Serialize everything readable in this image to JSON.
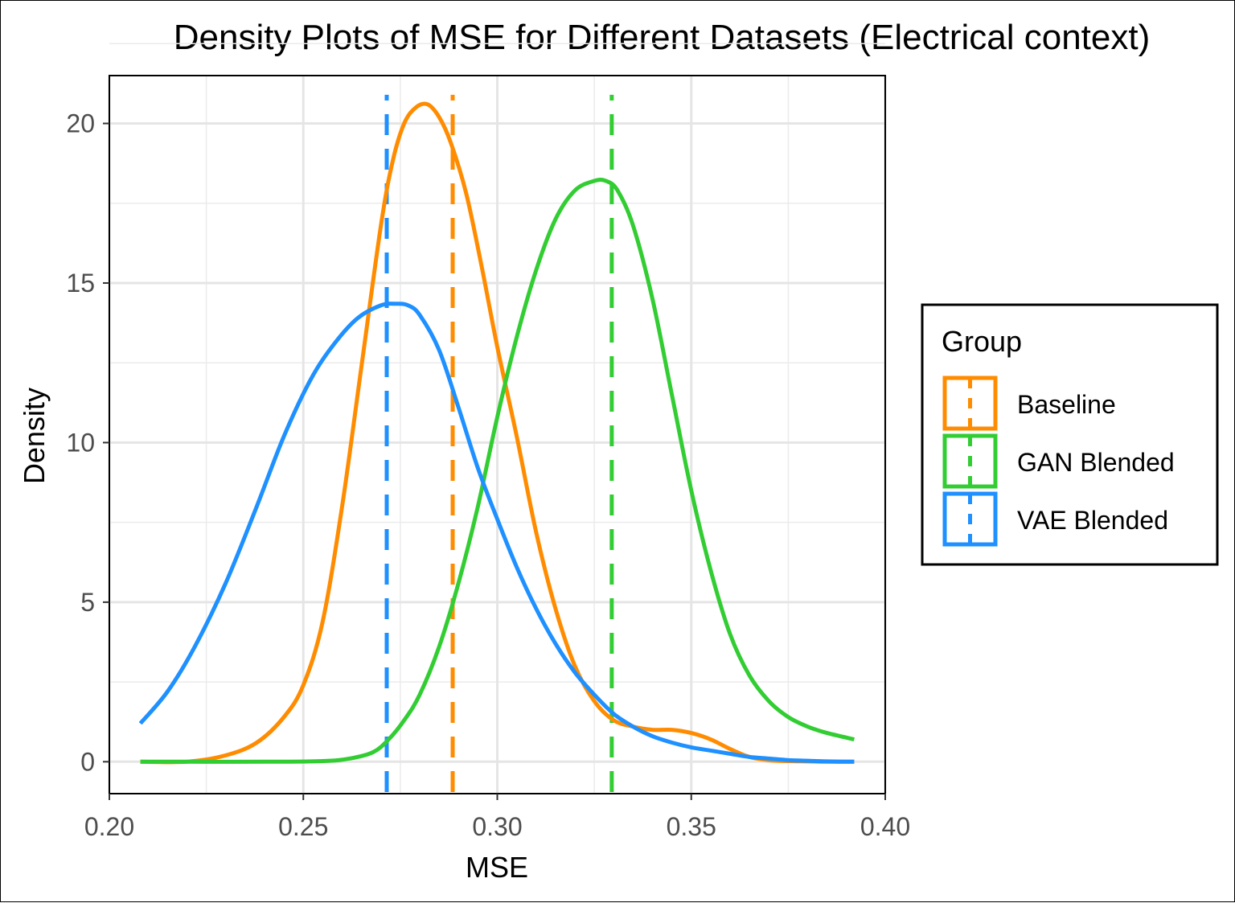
{
  "chart_data": {
    "type": "line",
    "title": "Density Plots of MSE for Different Datasets (Electrical context)",
    "xlabel": "MSE",
    "ylabel": "Density",
    "xlim": [
      0.2,
      0.4
    ],
    "ylim": [
      -1,
      21.5
    ],
    "xticks": [
      0.2,
      0.25,
      0.3,
      0.35,
      0.4
    ],
    "xtick_labels": [
      "0.20",
      "0.25",
      "0.30",
      "0.35",
      "0.40"
    ],
    "yticks": [
      0,
      5,
      10,
      15,
      20
    ],
    "ytick_labels": [
      "0",
      "5",
      "10",
      "15",
      "20"
    ],
    "grid": true,
    "legend": {
      "title": "Group",
      "placement": "right"
    },
    "series": [
      {
        "name": "Baseline",
        "color": "#ff8c00",
        "mean": 0.2885,
        "x": [
          0.208,
          0.22,
          0.23,
          0.238,
          0.245,
          0.25,
          0.255,
          0.26,
          0.265,
          0.27,
          0.273,
          0.276,
          0.279,
          0.282,
          0.285,
          0.288,
          0.292,
          0.296,
          0.3,
          0.305,
          0.31,
          0.315,
          0.32,
          0.325,
          0.33,
          0.335,
          0.34,
          0.345,
          0.35,
          0.355,
          0.36,
          0.365,
          0.37,
          0.375,
          0.38,
          0.385,
          0.392
        ],
        "y": [
          0.0,
          0.0,
          0.2,
          0.6,
          1.4,
          2.4,
          4.4,
          8.0,
          12.4,
          16.8,
          18.8,
          20.0,
          20.5,
          20.6,
          20.2,
          19.4,
          17.8,
          15.5,
          13.0,
          10.2,
          7.2,
          4.8,
          3.0,
          1.9,
          1.3,
          1.1,
          1.0,
          1.0,
          0.9,
          0.7,
          0.4,
          0.15,
          0.05,
          0.02,
          0.01,
          0.0,
          0.0
        ]
      },
      {
        "name": "GAN Blended",
        "color": "#32cd32",
        "mean": 0.3295,
        "x": [
          0.208,
          0.22,
          0.24,
          0.255,
          0.262,
          0.268,
          0.272,
          0.276,
          0.28,
          0.285,
          0.29,
          0.295,
          0.3,
          0.305,
          0.31,
          0.315,
          0.32,
          0.325,
          0.328,
          0.331,
          0.335,
          0.34,
          0.345,
          0.35,
          0.355,
          0.36,
          0.365,
          0.37,
          0.375,
          0.38,
          0.385,
          0.392
        ],
        "y": [
          0.0,
          0.0,
          0.0,
          0.02,
          0.1,
          0.3,
          0.7,
          1.3,
          2.1,
          3.6,
          5.6,
          8.0,
          10.8,
          13.3,
          15.4,
          17.0,
          17.9,
          18.2,
          18.2,
          17.9,
          16.8,
          14.5,
          11.5,
          8.5,
          6.0,
          4.0,
          2.7,
          1.9,
          1.4,
          1.1,
          0.9,
          0.7
        ]
      },
      {
        "name": "VAE Blended",
        "color": "#1e90ff",
        "mean": 0.2715,
        "x": [
          0.208,
          0.215,
          0.222,
          0.23,
          0.238,
          0.245,
          0.252,
          0.258,
          0.264,
          0.27,
          0.274,
          0.277,
          0.28,
          0.285,
          0.29,
          0.295,
          0.3,
          0.305,
          0.31,
          0.315,
          0.32,
          0.325,
          0.33,
          0.335,
          0.34,
          0.345,
          0.35,
          0.355,
          0.36,
          0.365,
          0.37,
          0.375,
          0.38,
          0.385,
          0.392
        ],
        "y": [
          1.2,
          2.2,
          3.6,
          5.6,
          8.0,
          10.2,
          12.0,
          13.1,
          13.9,
          14.3,
          14.35,
          14.3,
          14.0,
          12.9,
          11.1,
          9.2,
          7.6,
          6.1,
          4.8,
          3.7,
          2.8,
          2.1,
          1.5,
          1.1,
          0.8,
          0.6,
          0.45,
          0.35,
          0.25,
          0.15,
          0.1,
          0.05,
          0.03,
          0.01,
          0.0
        ]
      }
    ]
  }
}
